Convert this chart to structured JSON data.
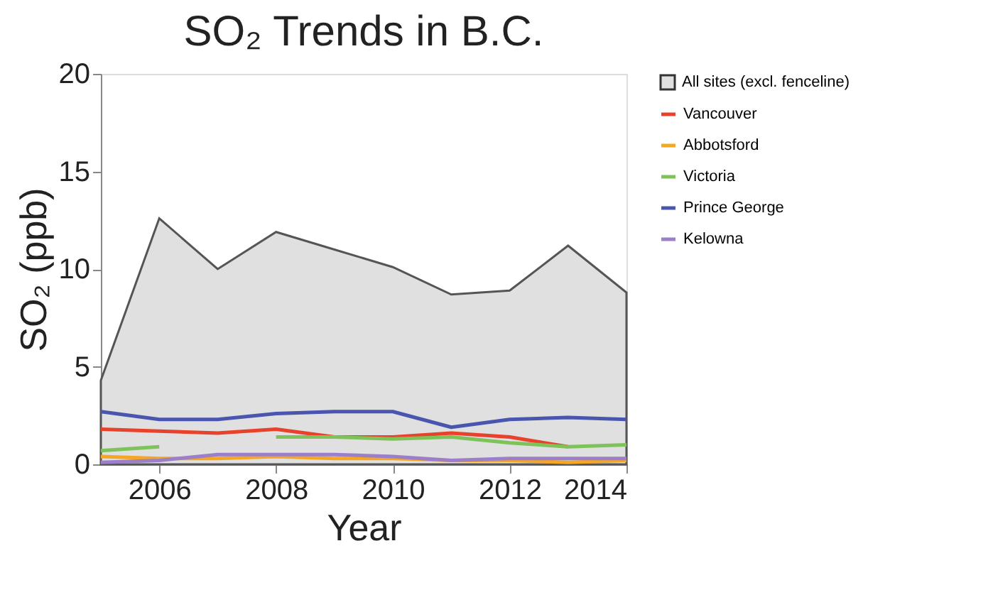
{
  "chart_data": {
    "type": "line",
    "title": "SO₂ Trends in B.C.",
    "xlabel": "Year",
    "ylabel": "SO₂ (ppb)",
    "x": [
      2005,
      2006,
      2007,
      2008,
      2009,
      2010,
      2011,
      2012,
      2013,
      2014
    ],
    "xlim": [
      2005,
      2014
    ],
    "xticks": [
      2006,
      2008,
      2010,
      2012,
      2014
    ],
    "ylim": [
      0,
      20
    ],
    "yticks": [
      0,
      5,
      10,
      15,
      20
    ],
    "grid": false,
    "legend": "right",
    "line_style": "solid",
    "marker": "none",
    "series": [
      {
        "name": "All sites (excl. fenceline)",
        "type": "area",
        "color": "#e0e0e0",
        "values": [
          4.3,
          12.6,
          10.0,
          11.9,
          11.0,
          10.1,
          8.7,
          8.9,
          11.2,
          8.8
        ]
      },
      {
        "name": "Vancouver",
        "color": "#e8412c",
        "values": [
          1.8,
          1.7,
          1.6,
          1.8,
          1.4,
          1.4,
          1.6,
          1.4,
          0.9,
          null
        ]
      },
      {
        "name": "Abbotsford",
        "color": "#f5a623",
        "values": [
          0.4,
          0.3,
          0.3,
          0.4,
          0.3,
          0.3,
          0.2,
          0.2,
          0.1,
          0.2
        ]
      },
      {
        "name": "Victoria",
        "color": "#7dc35a",
        "values": [
          0.7,
          0.9,
          null,
          1.4,
          1.4,
          1.3,
          1.4,
          1.1,
          0.9,
          1.0
        ]
      },
      {
        "name": "Prince George",
        "color": "#4a55b0",
        "values": [
          2.7,
          2.3,
          2.3,
          2.6,
          2.7,
          2.7,
          1.9,
          2.3,
          2.4,
          2.3
        ]
      },
      {
        "name": "Kelowna",
        "color": "#9b7fc8",
        "values": [
          0.1,
          0.2,
          0.5,
          0.5,
          0.5,
          0.4,
          0.2,
          0.3,
          0.3,
          0.3
        ]
      }
    ]
  }
}
